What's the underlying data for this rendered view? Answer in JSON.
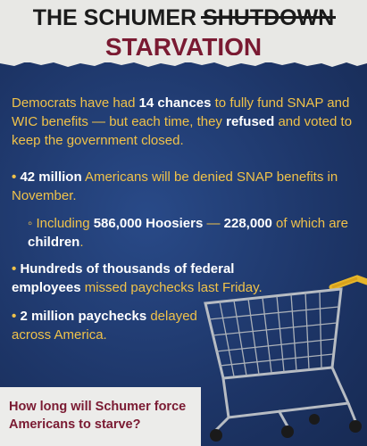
{
  "header": {
    "title_prefix": "THE SCHUMER ",
    "title_strikethrough": "SHUTDOWN",
    "title_main": "STARVATION"
  },
  "intro": {
    "p1": "Democrats have had ",
    "p2": "14 chances",
    "p3": " to fully fund SNAP and WIC benefits — but each time, they ",
    "p4": "refused",
    "p5": " and voted to keep the government closed."
  },
  "bullets": [
    {
      "marker": "•",
      "parts": [
        "42 million",
        " Americans will be denied SNAP benefits in November."
      ]
    },
    {
      "marker": "◦",
      "parts": [
        "Including ",
        "586,000 Hoosiers",
        " — ",
        "228,000",
        " of which are ",
        "children",
        "."
      ]
    },
    {
      "marker": "•",
      "parts": [
        "Hundreds of thousands of federal employees",
        " missed paychecks last Friday."
      ]
    },
    {
      "marker": "•",
      "parts": [
        "2 million paychecks",
        " delayed across America."
      ]
    }
  ],
  "callout": {
    "text": "How long will Schumer force Americans to starve?"
  },
  "icons": {
    "cart": "shopping-cart-icon"
  },
  "colors": {
    "navy": "#1d3567",
    "gold": "#f0c24a",
    "maroon": "#7a1a32",
    "paper": "#e8e8e5"
  }
}
